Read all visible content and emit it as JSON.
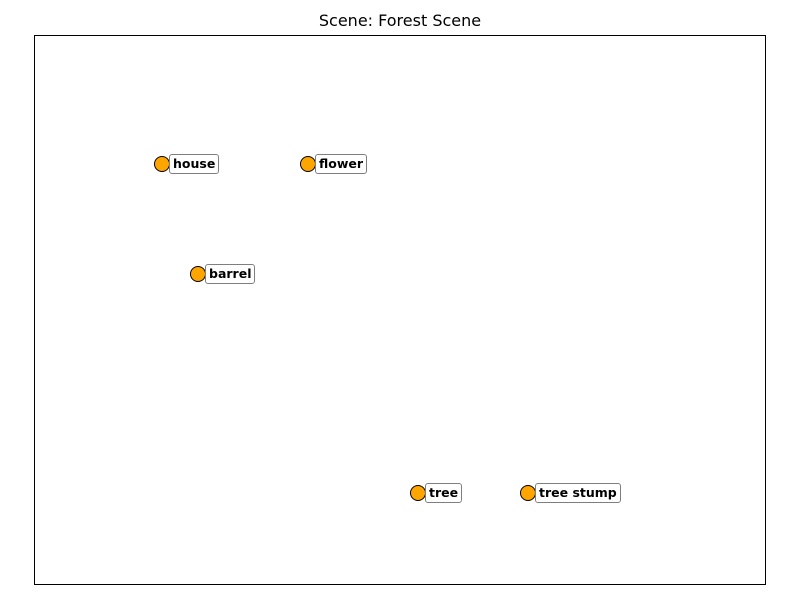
{
  "title": "Scene: Forest Scene",
  "colors": {
    "marker_fill": "#FFA500",
    "marker_edge": "#000000",
    "label_border": "#7f7f7f"
  },
  "objects": [
    {
      "name": "house",
      "marker_icon": "orange-circle"
    },
    {
      "name": "flower",
      "marker_icon": "orange-circle"
    },
    {
      "name": "barrel",
      "marker_icon": "orange-circle"
    },
    {
      "name": "tree",
      "marker_icon": "orange-circle"
    },
    {
      "name": "tree stump",
      "marker_icon": "orange-circle"
    }
  ]
}
